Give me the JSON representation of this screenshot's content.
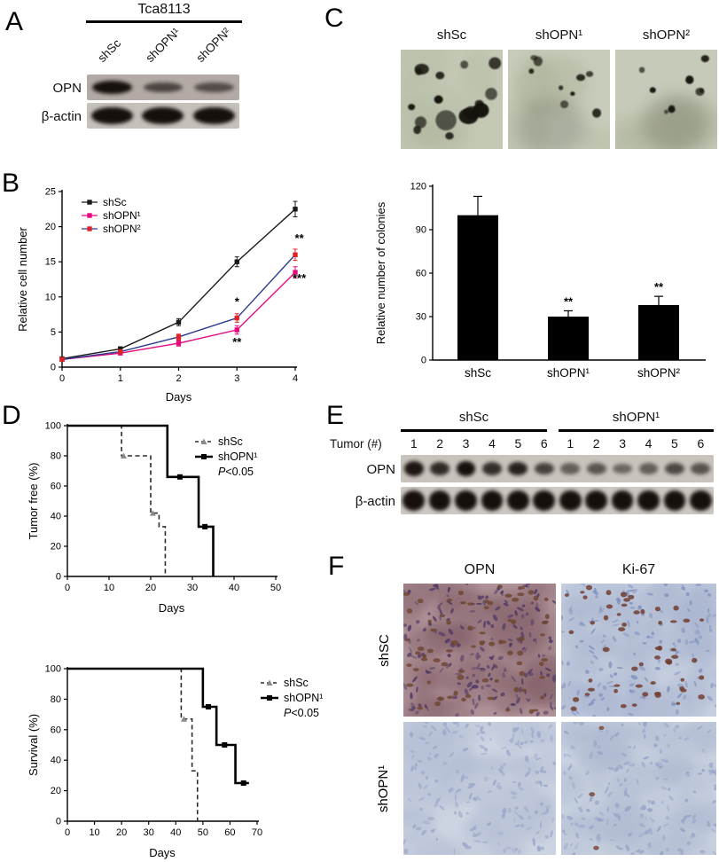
{
  "figure": {
    "panel_a": {
      "label": "A",
      "cell_line": "Tca8113",
      "lane_labels": [
        "shSc",
        "shOPN¹",
        "shOPN²"
      ],
      "blot_rows": [
        {
          "label": "OPN",
          "band_intensities": [
            1.0,
            0.5,
            0.42
          ]
        },
        {
          "label": "β-actin",
          "band_intensities": [
            1.0,
            1.0,
            1.0
          ]
        }
      ]
    },
    "panel_b": {
      "label": "B"
    },
    "panel_c": {
      "label": "C",
      "images": [
        {
          "label": "shSc",
          "blob_count": 17,
          "blob_size": "large",
          "bg": "#c3c9b5"
        },
        {
          "label": "shOPN¹",
          "blob_count": 9,
          "blob_size": "small",
          "bg": "#c7ccba"
        },
        {
          "label": "shOPN²",
          "blob_count": 9,
          "blob_size": "small",
          "bg": "#c6cbb9"
        }
      ]
    },
    "panel_d": {
      "label": "D"
    },
    "panel_e": {
      "label": "E",
      "group_labels": [
        "shSc",
        "shOPN¹"
      ],
      "tumor_label": "Tumor (#)",
      "lane_numbers": [
        "1",
        "2",
        "3",
        "4",
        "5",
        "6",
        "1",
        "2",
        "3",
        "4",
        "5",
        "6"
      ],
      "blot_rows": [
        {
          "label": "OPN",
          "band_intensities": [
            0.95,
            0.8,
            1.0,
            0.75,
            0.85,
            0.6,
            0.35,
            0.42,
            0.3,
            0.35,
            0.55,
            0.45
          ]
        },
        {
          "label": "β-actin",
          "band_intensities": [
            1,
            1,
            1,
            1,
            1,
            1,
            1,
            1,
            1,
            1,
            1,
            1
          ]
        }
      ]
    },
    "panel_f": {
      "label": "F",
      "col_labels": [
        "OPN",
        "Ki-67"
      ],
      "row_labels": [
        "shSC",
        "shOPN¹"
      ],
      "images": [
        {
          "row": "shSC",
          "col": "OPN",
          "base": "#b09399",
          "tissue": "#84616a",
          "nuclei": "#503963",
          "nuclei_count": 190,
          "positive": "#6e4530",
          "positive_count": 75
        },
        {
          "row": "shSC",
          "col": "Ki-67",
          "base": "#c6cfdf",
          "tissue": "#a9b4cf",
          "nuclei": "#8292bd",
          "nuclei_count": 150,
          "positive": "#70392c",
          "positive_count": 55
        },
        {
          "row": "shOPN¹",
          "col": "OPN",
          "base": "#ccd3e1",
          "tissue": "#b3bdd4",
          "nuclei": "#9aa7c9",
          "nuclei_count": 170,
          "positive": "#7a4433",
          "positive_count": 0
        },
        {
          "row": "shOPN¹",
          "col": "Ki-67",
          "base": "#c9d2e0",
          "tissue": "#aeb9d1",
          "nuclei": "#96a4c6",
          "nuclei_count": 175,
          "positive": "#7a4433",
          "positive_count": 3
        }
      ]
    }
  },
  "chart_data": [
    {
      "id": "panel_b_growth",
      "type": "line",
      "title": "",
      "xlabel": "Days",
      "ylabel": "Relative cell number",
      "x": [
        0,
        1,
        2,
        3,
        4
      ],
      "xlim": [
        0,
        4
      ],
      "ylim": [
        0,
        25
      ],
      "yticks": [
        0,
        5,
        10,
        15,
        20,
        25
      ],
      "legend_position": "top-left",
      "series": [
        {
          "name": "shSc",
          "color": "#1a1a1a",
          "values": [
            1.2,
            2.6,
            6.4,
            15.0,
            22.5
          ],
          "errors": [
            0.2,
            0.3,
            0.5,
            0.7,
            1.1
          ]
        },
        {
          "name": "shOPN¹",
          "color": "#e5097f",
          "values": [
            1.1,
            2.0,
            3.4,
            5.3,
            13.5
          ],
          "errors": [
            0.15,
            0.25,
            0.4,
            0.6,
            0.8
          ]
        },
        {
          "name": "shOPN²",
          "color": "#2b3a8f",
          "marker_color": "#e02128",
          "values": [
            1.1,
            2.2,
            4.3,
            7.0,
            16.0
          ],
          "errors": [
            0.15,
            0.25,
            0.4,
            0.6,
            0.8
          ]
        }
      ],
      "annotations": [
        {
          "text": "*",
          "x": 3,
          "y": 8.8
        },
        {
          "text": "**",
          "x": 3,
          "y": 3.0
        },
        {
          "text": "**",
          "x": 4.07,
          "y": 17.8
        },
        {
          "text": "***",
          "x": 4.07,
          "y": 12.1
        }
      ]
    },
    {
      "id": "panel_c_colonies",
      "type": "bar",
      "ylabel": "Relative number of colonies",
      "categories": [
        "shSc",
        "shOPN¹",
        "shOPN²"
      ],
      "values": [
        100,
        30,
        38
      ],
      "errors": [
        13,
        4,
        6
      ],
      "ylim": [
        0,
        120
      ],
      "yticks": [
        0,
        30,
        60,
        90,
        120
      ],
      "bar_color": "#000000",
      "annotations": [
        "",
        "**",
        "**"
      ]
    },
    {
      "id": "panel_d_tumor_free",
      "type": "line",
      "subtype": "kaplan_meier",
      "xlabel": "Days",
      "ylabel": "Tumor free (%)",
      "xlim": [
        0,
        50
      ],
      "xticks": [
        0,
        10,
        20,
        30,
        40,
        50
      ],
      "ylim": [
        0,
        100
      ],
      "yticks": [
        0,
        20,
        40,
        60,
        80,
        100
      ],
      "legend_note": "P<0.05",
      "series": [
        {
          "name": "shSc",
          "style": "dashed",
          "marker": "triangle",
          "color": "#2b2b2b",
          "width": 1.6,
          "points": [
            [
              0,
              100
            ],
            [
              13,
              100
            ],
            [
              13,
              80
            ],
            [
              20,
              80
            ],
            [
              20,
              42
            ],
            [
              22,
              42
            ],
            [
              22,
              33
            ],
            [
              23.5,
              33
            ],
            [
              23.5,
              0
            ]
          ],
          "marker_points": [
            [
              13.5,
              80
            ],
            [
              20.5,
              42
            ]
          ]
        },
        {
          "name": "shOPN¹",
          "style": "solid",
          "marker": "square",
          "color": "#000000",
          "width": 2.6,
          "points": [
            [
              0,
              100
            ],
            [
              24,
              100
            ],
            [
              24,
              66
            ],
            [
              31.5,
              66
            ],
            [
              31.5,
              33
            ],
            [
              35,
              33
            ],
            [
              35,
              0
            ]
          ],
          "marker_points": [
            [
              27,
              66
            ],
            [
              33,
              33
            ]
          ]
        }
      ]
    },
    {
      "id": "panel_d_survival",
      "type": "line",
      "subtype": "kaplan_meier",
      "xlabel": "Days",
      "ylabel": "Survival (%)",
      "xlim": [
        0,
        70
      ],
      "xticks": [
        0,
        10,
        20,
        30,
        40,
        50,
        60,
        70
      ],
      "ylim": [
        0,
        100
      ],
      "yticks": [
        0,
        20,
        40,
        60,
        80,
        100
      ],
      "legend_note": "P<0.05",
      "series": [
        {
          "name": "shSc",
          "style": "dashed",
          "marker": "triangle",
          "color": "#2b2b2b",
          "width": 1.6,
          "points": [
            [
              0,
              100
            ],
            [
              42,
              100
            ],
            [
              42,
              67
            ],
            [
              46,
              67
            ],
            [
              46,
              33
            ],
            [
              48,
              33
            ],
            [
              48,
              0
            ]
          ],
          "marker_points": [
            [
              43,
              67
            ]
          ]
        },
        {
          "name": "shOPN¹",
          "style": "solid",
          "marker": "square",
          "color": "#000000",
          "width": 2.6,
          "points": [
            [
              0,
              100
            ],
            [
              50,
              100
            ],
            [
              50,
              75
            ],
            [
              55,
              75
            ],
            [
              55,
              50
            ],
            [
              62,
              50
            ],
            [
              62,
              25
            ],
            [
              67,
              25
            ]
          ],
          "marker_points": [
            [
              52,
              75
            ],
            [
              58,
              50
            ],
            [
              65,
              25
            ]
          ]
        }
      ]
    }
  ]
}
